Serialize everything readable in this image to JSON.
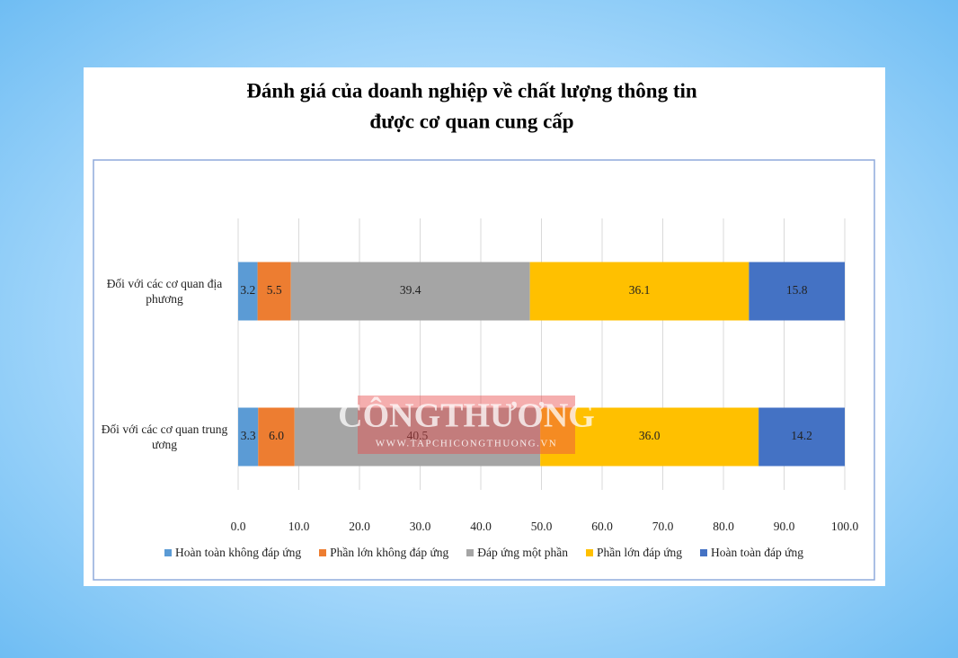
{
  "chart_data": {
    "type": "stacked-bar-horizontal",
    "title": [
      "Đánh giá của doanh nghiệp về chất lượng thông tin",
      "được cơ quan cung cấp"
    ],
    "categories": [
      "Đối với các cơ quan địa phương",
      "Đối với các cơ quan trung ương"
    ],
    "series": [
      {
        "name": "Hoàn toàn không đáp ứng",
        "color": "#5b9bd5",
        "values": [
          3.2,
          3.3
        ]
      },
      {
        "name": "Phần lớn không đáp ứng",
        "color": "#ed7d31",
        "values": [
          5.5,
          6.0
        ],
        "value_labels": [
          "5.5",
          "6.0"
        ]
      },
      {
        "name": "Đáp ứng một phần",
        "color": "#a5a5a5",
        "values": [
          39.4,
          40.5
        ]
      },
      {
        "name": "Phần lớn đáp ứng",
        "color": "#ffc000",
        "values": [
          36.1,
          36.0
        ],
        "value_labels": [
          "36.1",
          "36.0"
        ]
      },
      {
        "name": "Hoàn toàn đáp ứng",
        "color": "#4472c4",
        "values": [
          15.8,
          14.2
        ]
      }
    ],
    "xlim": [
      0,
      100
    ],
    "xticks": [
      {
        "value": 0,
        "label": "0.0"
      },
      {
        "value": 10,
        "label": "10.0"
      },
      {
        "value": 20,
        "label": "20.0"
      },
      {
        "value": 30,
        "label": "30.0"
      },
      {
        "value": 40,
        "label": "40.0"
      },
      {
        "value": 50,
        "label": "50.0"
      },
      {
        "value": 60,
        "label": "60.0"
      },
      {
        "value": 70,
        "label": "70.0"
      },
      {
        "value": 80,
        "label": "80.0"
      },
      {
        "value": 90,
        "label": "90.0"
      },
      {
        "value": 100,
        "label": "100.0"
      }
    ],
    "grid": true,
    "legend": "bottom",
    "watermark": [
      "CÔNGTHƯƠNG",
      "WWW.TAPCHICONGTHUONG.VN"
    ]
  }
}
